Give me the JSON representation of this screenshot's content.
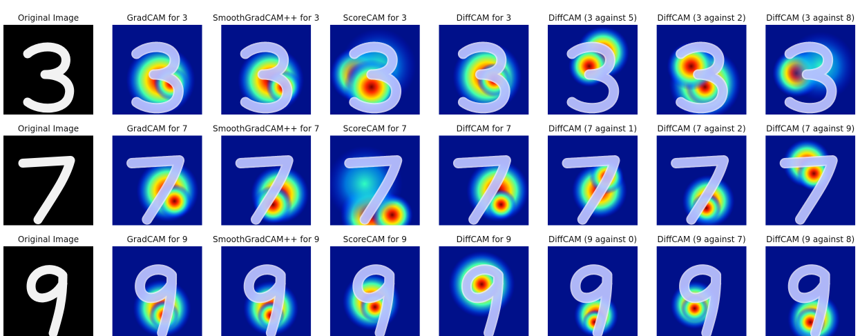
{
  "figure": {
    "rows": [
      {
        "titles": [
          "Original Image",
          "GradCAM for 3",
          "SmoothGradCAM++ for 3",
          "ScoreCAM for 3",
          "DiffCAM for 3",
          "DiffCAM (3 against 5)",
          "DiffCAM (3 against 2)",
          "DiffCAM (3 against 8)"
        ]
      },
      {
        "titles": [
          "Original Image",
          "GradCAM for 7",
          "SmoothGradCAM++ for 7",
          "ScoreCAM for 7",
          "DiffCAM for 7",
          "DiffCAM (7 against 1)",
          "DiffCAM (7 against 2)",
          "DiffCAM (7 against 9)"
        ]
      },
      {
        "titles": [
          "Original Image",
          "GradCAM for 9",
          "SmoothGradCAM++ for 9",
          "ScoreCAM for 9",
          "DiffCAM for 9",
          "DiffCAM (9 against 0)",
          "DiffCAM (9 against 7)",
          "DiffCAM (9 against 8)"
        ]
      }
    ]
  }
}
